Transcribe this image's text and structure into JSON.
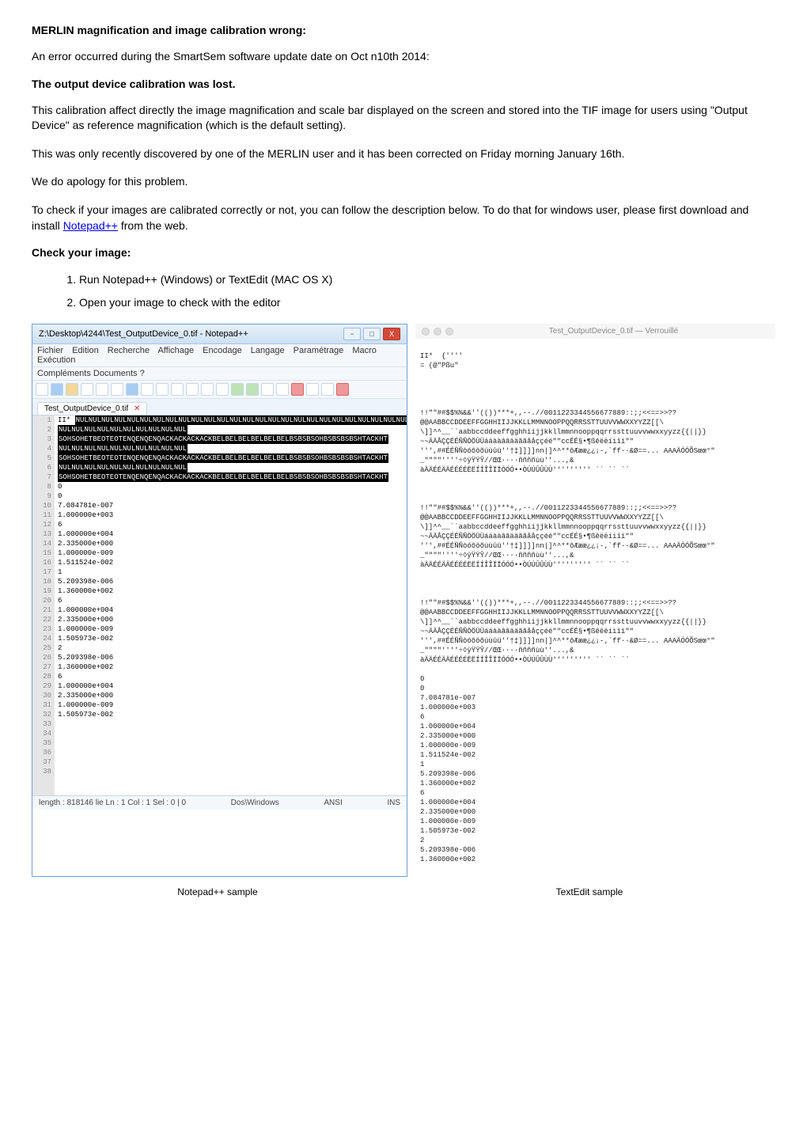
{
  "headings": {
    "title": "MERLIN magnification and image calibration wrong:",
    "lost": "The output device calibration was lost.",
    "check": "Check your image:"
  },
  "paragraphs": {
    "intro": "An error occurred during the SmartSem software update date on Oct n10th 2014:",
    "calib": "This calibration affect directly the image magnification and scale bar displayed on the screen and stored into the TIF image for users using \"Output Device\" as reference magnification (which is the default setting).",
    "discovered": "This was only recently discovered by one of the MERLIN user and it has been corrected on Friday morning January 16th.",
    "apology": "We do apology for this problem.",
    "tocheck_before_link": "To check if your images are calibrated correctly or not, you can follow the description below. To do that for windows user, please first download and install ",
    "link_text": "Notepad++",
    "tocheck_after_link": " from the web."
  },
  "steps": {
    "one": "Run Notepad++ (Windows) or TextEdit (MAC OS X)",
    "two": "Open your image to check with the editor"
  },
  "notepad": {
    "title": "Z:\\Desktop\\4244\\Test_OutputDevice_0.tif - Notepad++",
    "menus": [
      "Fichier",
      "Edition",
      "Recherche",
      "Affichage",
      "Encodage",
      "Langage",
      "Paramétrage",
      "Macro",
      "Exécution"
    ],
    "menus2": "Compléments   Documents   ?",
    "close_x": "X",
    "tab": "Test_OutputDevice_0.tif",
    "hex_highlight": "SOHSOHETBEOTEOTENQENQENQACKACKACKACKBELBELBELBELBELBELBSBSBSOHBSBSBSBSHTACKHT",
    "plain_text_header": "II*",
    "plain_block_1": "NULNULNULNULNULNULNULNULNULNUL",
    "line14": "0",
    "line15": "0",
    "line16": "7.084781e-007",
    "line17": "1.000000e+003",
    "line18": "6",
    "line19": "1.000000e+004",
    "line20": "2.335000e+000",
    "line21": "1.000000e-009",
    "line22": "1.511524e-002",
    "line23": "1",
    "line24": "5.209398e-006",
    "line25": "1.360000e+002",
    "line26": "6",
    "line27": "1.000000e+004",
    "line28": "2.335000e+000",
    "line29": "1.000000e-009",
    "line30": "1.505973e-002",
    "line31": "2",
    "line32": "5.209398e-006",
    "line33": "1.360000e+002",
    "line34": "6",
    "line35": "1.000000e+004",
    "line36": "2.335000e+000",
    "line37": "1.000000e-009",
    "line38": "1.505973e-002",
    "status_left": "length : 818146    lie Ln : 1   Col : 1   Sel : 0 | 0",
    "status_mid": "Dos\\Windows",
    "status_right1": "ANSI",
    "status_right2": "INS"
  },
  "textedit": {
    "title": "Test_OutputDevice_0.tif — Verrouillé",
    "header_line": "II*  {''''",
    "header_line2": "= (@\"Pßu\"",
    "block": "!!\"\"##$$%%&&''(())***+,,--.//0011223344556677889::;;<<==>>??\n@@AABBCCDDEEFFGGHHIIJJKKLLMMNNOOPPQQRRSSTTUUVVWWXXYYZZ[[\\\n\\]]^^__``aabbccddeeffgghhiijjkkllmmnnooppqqrrssttuuvvwwxxyyzz{{||}}\n~~ÄÄÅÇÇÉÉÑÑÖÖÜÜááààââääããååççéé\"\"ccÉÉ§•¶ßêëëíìîï\"\"\n''',##ÉÉÑÑòóôöõúùûü''†‡]]]]nn|]^^**ôÆææ¿¿¡-‚`ff··&Ø==... AAAÄÓÓÕSœœ°\"\n_\"\"\"\"''''÷◊ÿŸŸŶ//ŒŒ····ññññùù''...,&\nàÄÄÉÉÄÄÉÉÉÉËËÍÍÎÎÏÏÓÓÓ••ÒÚÚÛÛÙÙ''''''''' `` `` ``",
    "values": "0\n0\n7.084781e-007\n1.000000e+003\n6\n1.000000e+004\n2.335000e+000\n1.000000e-009\n1.511524e-002\n1\n5.209398e-006\n1.360000e+002\n6\n1.000000e+004\n2.335000e+000\n1.000000e-009\n1.505973e-002\n2\n5.209398e-006\n1.360000e+002"
  },
  "captions": {
    "left": "Notepad++ sample",
    "right": "TextEdit sample"
  }
}
